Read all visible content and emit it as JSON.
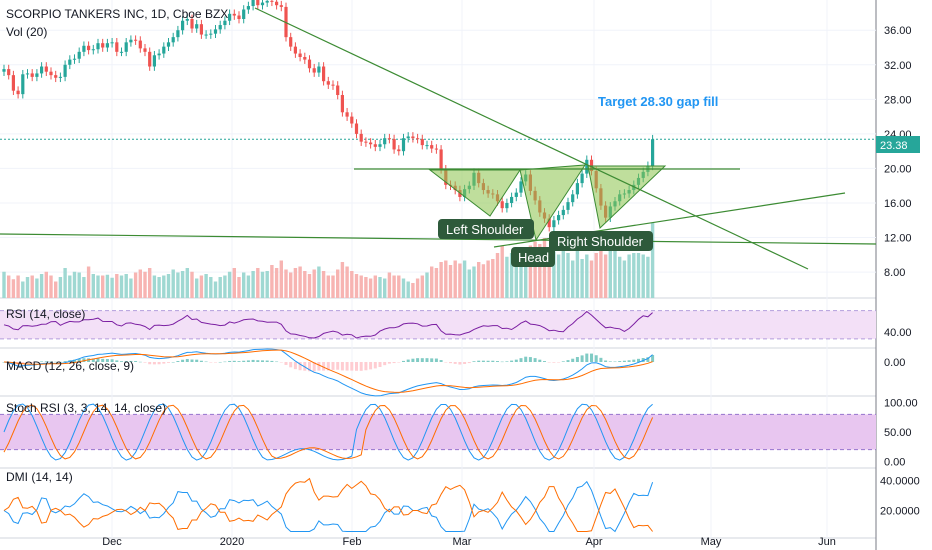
{
  "chart_data": {
    "type": "candlestick",
    "title": "SCORPIO TANKERS INC, 1D, Cboe BZX",
    "volume_label": "Vol (20)",
    "last_price_label": "23.38",
    "price_axis_ticks": [
      "36.00",
      "32.00",
      "28.00",
      "24.00",
      "20.00",
      "16.00",
      "12.00",
      "8.00"
    ],
    "price_axis_values": [
      36,
      32,
      28,
      24,
      20,
      16,
      12,
      8
    ],
    "price_range": [
      5,
      39.5
    ],
    "time_axis_labels": [
      "Dec",
      "2020",
      "Feb",
      "Mar",
      "Apr",
      "May",
      "Jun"
    ],
    "annotations": {
      "target": "Target 28.30 gap fill",
      "left_shoulder": "Left Shoulder",
      "head": "Head",
      "right_shoulder": "Right Shoulder"
    },
    "candles_close": [
      31.5,
      30.8,
      29.0,
      28.6,
      30.9,
      31.0,
      30.6,
      31.0,
      31.8,
      31.2,
      30.8,
      30.5,
      30.6,
      32.0,
      32.6,
      32.7,
      33.5,
      34.2,
      33.7,
      33.8,
      34.5,
      34.0,
      34.5,
      34.6,
      33.5,
      33.5,
      34.6,
      34.9,
      34.8,
      33.9,
      33.5,
      31.8,
      33.1,
      33.3,
      34.1,
      34.6,
      35.2,
      36.0,
      37.1,
      37.3,
      36.2,
      36.7,
      35.5,
      35.5,
      35.6,
      36.1,
      36.6,
      37.1,
      37.9,
      37.7,
      37.3,
      38.4,
      38.8,
      39.5,
      38.9,
      39.2,
      39.4,
      39.3,
      38.9,
      38.7,
      35.2,
      34.1,
      33.3,
      32.9,
      32.6,
      31.6,
      31.1,
      31.8,
      30.1,
      29.7,
      29.6,
      28.5,
      26.5,
      26.0,
      25.2,
      24.0,
      23.1,
      23.0,
      22.8,
      22.5,
      22.8,
      23.5,
      23.4,
      22.2,
      22.0,
      23.5,
      23.7,
      23.5,
      23.4,
      22.7,
      22.7,
      22.3,
      22.2,
      19.9,
      18.1,
      18.0,
      17.5,
      16.7,
      17.6,
      18.0,
      19.5,
      18.3,
      17.5,
      17.1,
      17.0,
      16.2,
      15.4,
      16.0,
      16.7,
      17.2,
      18.5,
      19.3,
      17.4,
      16.3,
      14.9,
      14.2,
      13.2,
      14.0,
      14.6,
      15.2,
      16.1,
      17.0,
      18.3,
      19.4,
      21.0,
      19.7,
      17.7,
      15.7,
      14.3,
      15.6,
      16.2,
      17.0,
      17.1,
      17.5,
      18.1,
      18.9,
      19.6,
      20.3,
      23.38
    ],
    "volume": [
      0.35,
      0.3,
      0.25,
      0.3,
      0.22,
      0.28,
      0.3,
      0.26,
      0.32,
      0.35,
      0.3,
      0.22,
      0.28,
      0.4,
      0.3,
      0.35,
      0.34,
      0.28,
      0.42,
      0.32,
      0.3,
      0.3,
      0.31,
      0.27,
      0.32,
      0.3,
      0.32,
      0.26,
      0.34,
      0.38,
      0.35,
      0.4,
      0.3,
      0.28,
      0.3,
      0.32,
      0.38,
      0.34,
      0.36,
      0.4,
      0.35,
      0.26,
      0.3,
      0.32,
      0.28,
      0.22,
      0.28,
      0.3,
      0.35,
      0.4,
      0.28,
      0.34,
      0.3,
      0.36,
      0.4,
      0.35,
      0.36,
      0.44,
      0.4,
      0.5,
      0.38,
      0.34,
      0.4,
      0.42,
      0.36,
      0.32,
      0.38,
      0.42,
      0.36,
      0.3,
      0.3,
      0.38,
      0.48,
      0.42,
      0.36,
      0.32,
      0.3,
      0.28,
      0.26,
      0.3,
      0.28,
      0.26,
      0.34,
      0.3,
      0.3,
      0.26,
      0.22,
      0.2,
      0.26,
      0.3,
      0.34,
      0.42,
      0.4,
      0.48,
      0.5,
      0.44,
      0.5,
      0.46,
      0.5,
      0.38,
      0.42,
      0.48,
      0.45,
      0.5,
      0.52,
      0.6,
      0.7,
      0.55,
      0.6,
      0.62,
      0.66,
      0.58,
      0.7,
      0.75,
      0.72,
      0.8,
      0.68,
      0.62,
      0.58,
      0.7,
      0.6,
      0.5,
      0.65,
      0.52,
      0.58,
      0.5,
      0.6,
      0.68,
      0.58,
      0.7,
      0.64,
      0.55,
      0.5,
      0.58,
      0.6,
      0.6,
      0.58,
      0.55,
      1.0
    ],
    "indicators": {
      "rsi": {
        "label": "RSI (14, close)",
        "tick": "40.00",
        "value": 40,
        "range": [
          20,
          85
        ],
        "band": [
          30,
          70
        ]
      },
      "macd": {
        "label": "MACD (12, 26, close, 9)",
        "tick": "0.00",
        "value": 0,
        "range": [
          -3.2,
          1.2
        ]
      },
      "stoch_rsi": {
        "label": "Stoch RSI (3, 3, 14, 14, close)",
        "ticks": [
          "100.00",
          "50.00",
          "0.00"
        ],
        "values": [
          100,
          50,
          0
        ],
        "range": [
          -8,
          108
        ],
        "band": [
          20,
          80
        ]
      },
      "dmi": {
        "label": "DMI (14, 14)",
        "ticks": [
          "40.0000",
          "20.0000"
        ],
        "values": [
          40,
          20
        ],
        "range": [
          3,
          47
        ]
      }
    },
    "colors": {
      "up": "#26a69a",
      "down": "#ef5350",
      "trend": "#3c8b33",
      "pattern_fill": "#8bc34a",
      "callout": "#2e5a3b",
      "target": "#2196f3",
      "osc": "#7b1fa2",
      "signal": "#ff6d00",
      "blue": "#2196f3",
      "band_fill": "#f3e0f7"
    }
  }
}
